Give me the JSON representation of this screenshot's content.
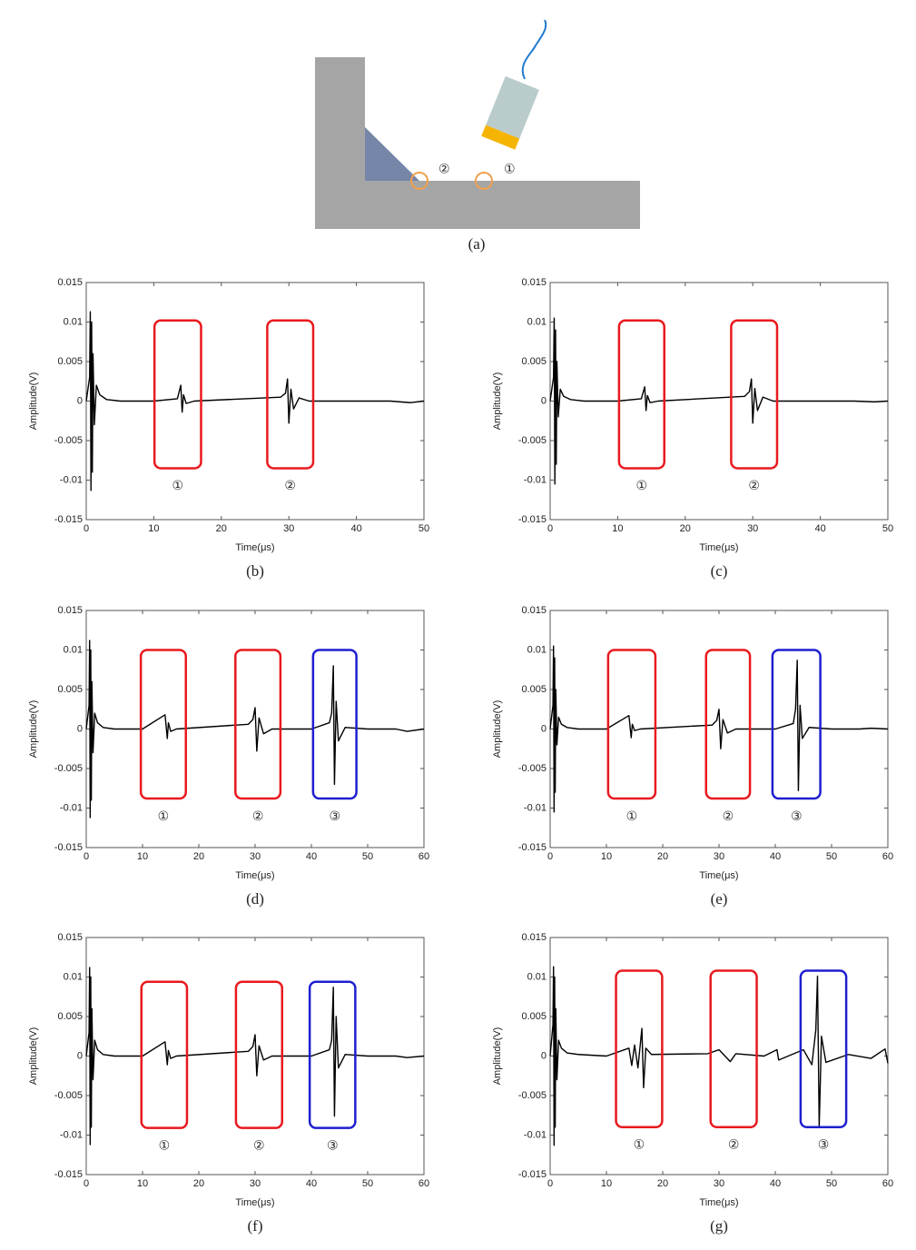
{
  "diagram": {
    "labels": [
      "②",
      "①"
    ],
    "caption": "(a)"
  },
  "chart_data": [
    {
      "type": "line",
      "caption": "(b)",
      "xlabel": "Time(μs)",
      "ylabel": "Amplitude(V)",
      "color": "#000000",
      "xlim": [
        0,
        50
      ],
      "xticks": [
        0,
        10,
        20,
        30,
        40,
        50
      ],
      "ylim": [
        -0.015,
        0.015
      ],
      "yticks": [
        -0.015,
        -0.01,
        -0.005,
        0,
        0.005,
        0.01,
        0.015
      ],
      "x": [
        0,
        0.5,
        0.6,
        0.7,
        0.8,
        0.9,
        1.0,
        1.2,
        1.5,
        2,
        3,
        5,
        10,
        13.5,
        14.0,
        14.2,
        14.4,
        14.8,
        16,
        28.8,
        29.5,
        29.8,
        30.0,
        30.3,
        30.7,
        31.5,
        33,
        40,
        45,
        48,
        50
      ],
      "values": [
        0,
        0.003,
        0.0113,
        -0.0113,
        0.01,
        -0.009,
        0.006,
        -0.003,
        0.002,
        0.0008,
        0.0002,
        0,
        0,
        0.0003,
        0.002,
        -0.0014,
        0.0008,
        -0.0003,
        0,
        0.0005,
        0.001,
        0.0028,
        -0.0028,
        0.0015,
        -0.001,
        0.0004,
        0,
        0,
        0,
        -0.0002,
        0
      ],
      "annotations": [
        {
          "text": "①",
          "color": "#e8191f",
          "xrange": [
            10.1,
            17
          ],
          "yrange": [
            0.0102,
            -0.0085
          ]
        },
        {
          "text": "②",
          "color": "#e8191f",
          "xrange": [
            26.8,
            33.6
          ],
          "yrange": [
            0.0102,
            -0.0085
          ]
        }
      ]
    },
    {
      "type": "line",
      "caption": "(c)",
      "xlabel": "Time(μs)",
      "ylabel": "Amplitude(V)",
      "color": "#000000",
      "xlim": [
        0,
        50
      ],
      "xticks": [
        0,
        10,
        20,
        30,
        40,
        50
      ],
      "ylim": [
        -0.015,
        0.015
      ],
      "yticks": [
        -0.015,
        -0.01,
        -0.005,
        0,
        0.005,
        0.01,
        0.015
      ],
      "x": [
        0,
        0.5,
        0.6,
        0.7,
        0.8,
        0.9,
        1.0,
        1.2,
        1.5,
        2,
        3,
        5,
        10,
        13.5,
        14.0,
        14.2,
        14.4,
        14.8,
        16,
        28.8,
        29.5,
        29.8,
        30.0,
        30.3,
        30.7,
        31.5,
        33,
        40,
        45,
        48,
        50
      ],
      "values": [
        0,
        0.003,
        0.0105,
        -0.0105,
        0.009,
        -0.008,
        0.005,
        -0.002,
        0.0015,
        0.0006,
        0.0002,
        0,
        0,
        0.0003,
        0.0018,
        -0.0012,
        0.0007,
        -0.0002,
        0,
        0.0006,
        0.0012,
        0.0028,
        -0.0028,
        0.0016,
        -0.0012,
        0.0005,
        0,
        0,
        0,
        -0.0001,
        0
      ],
      "annotations": [
        {
          "text": "①",
          "color": "#e8191f",
          "xrange": [
            10.2,
            16.9
          ],
          "yrange": [
            0.0102,
            -0.0085
          ]
        },
        {
          "text": "②",
          "color": "#e8191f",
          "xrange": [
            26.8,
            33.6
          ],
          "yrange": [
            0.0102,
            -0.0085
          ]
        }
      ]
    },
    {
      "type": "line",
      "caption": "(d)",
      "xlabel": "Time(μs)",
      "ylabel": "Amplitude(V)",
      "color": "#000000",
      "xlim": [
        0,
        60
      ],
      "xticks": [
        0,
        10,
        20,
        30,
        40,
        50,
        60
      ],
      "ylim": [
        -0.015,
        0.015
      ],
      "yticks": [
        -0.015,
        -0.01,
        -0.005,
        0,
        0.005,
        0.01,
        0.015
      ],
      "x": [
        0,
        0.5,
        0.6,
        0.7,
        0.8,
        0.9,
        1.0,
        1.2,
        1.5,
        2,
        3,
        5,
        10,
        14.0,
        14.4,
        14.6,
        15,
        16,
        28.8,
        29.6,
        30.0,
        30.3,
        30.7,
        31.5,
        33,
        40,
        43.2,
        43.6,
        43.9,
        44.1,
        44.4,
        44.8,
        46,
        50,
        55,
        57,
        60
      ],
      "values": [
        0,
        0.003,
        0.0112,
        -0.0112,
        0.01,
        -0.009,
        0.006,
        -0.003,
        0.002,
        0.0008,
        0.0002,
        0,
        0,
        0.0018,
        -0.0012,
        0.0008,
        -0.0003,
        0,
        0.0006,
        0.0012,
        0.0027,
        -0.0028,
        0.0014,
        -0.0006,
        0,
        0,
        0.0008,
        0.002,
        0.008,
        -0.007,
        0.0035,
        -0.0015,
        0.0002,
        0,
        0,
        -0.0003,
        0
      ],
      "annotations": [
        {
          "text": "①",
          "color": "#e8191f",
          "xrange": [
            9.7,
            17.7
          ],
          "yrange": [
            0.01,
            -0.0088
          ]
        },
        {
          "text": "②",
          "color": "#e8191f",
          "xrange": [
            26.5,
            34.5
          ],
          "yrange": [
            0.01,
            -0.0088
          ]
        },
        {
          "text": "③",
          "color": "#1f1fd0",
          "xrange": [
            40.3,
            48
          ],
          "yrange": [
            0.01,
            -0.0088
          ]
        }
      ]
    },
    {
      "type": "line",
      "caption": "(e)",
      "xlabel": "Time(μs)",
      "ylabel": "Amplitude(V)",
      "color": "#000000",
      "xlim": [
        0,
        60
      ],
      "xticks": [
        0,
        10,
        20,
        30,
        40,
        50,
        60
      ],
      "ylim": [
        -0.015,
        0.015
      ],
      "yticks": [
        -0.015,
        -0.01,
        -0.005,
        0,
        0.005,
        0.01,
        0.015
      ],
      "x": [
        0,
        0.5,
        0.6,
        0.7,
        0.8,
        0.9,
        1.0,
        1.2,
        1.5,
        2,
        3,
        5,
        10,
        14.0,
        14.4,
        14.6,
        15,
        16,
        28.8,
        29.6,
        30.0,
        30.3,
        30.7,
        31.5,
        33,
        40,
        43.2,
        43.6,
        43.9,
        44.1,
        44.4,
        44.8,
        46,
        50,
        55,
        57,
        60
      ],
      "values": [
        0,
        0.003,
        0.0105,
        -0.0105,
        0.009,
        -0.008,
        0.005,
        -0.002,
        0.0015,
        0.0006,
        0.0002,
        0,
        0,
        0.0017,
        -0.0011,
        0.0006,
        -0.0002,
        0,
        0.0005,
        0.0011,
        0.0025,
        -0.0025,
        0.0012,
        -0.0005,
        0,
        0,
        0.0007,
        0.0025,
        0.0087,
        -0.0078,
        0.003,
        -0.0012,
        0.0002,
        0,
        0,
        0.0001,
        0
      ],
      "annotations": [
        {
          "text": "①",
          "color": "#e8191f",
          "xrange": [
            10.3,
            18.7
          ],
          "yrange": [
            0.01,
            -0.0088
          ]
        },
        {
          "text": "②",
          "color": "#e8191f",
          "xrange": [
            27.7,
            35.5
          ],
          "yrange": [
            0.01,
            -0.0088
          ]
        },
        {
          "text": "③",
          "color": "#1f1fd0",
          "xrange": [
            39.5,
            48
          ],
          "yrange": [
            0.01,
            -0.0088
          ]
        }
      ]
    },
    {
      "type": "line",
      "caption": "(f)",
      "xlabel": "Time(μs)",
      "ylabel": "Amplitude(V)",
      "color": "#000000",
      "xlim": [
        0,
        60
      ],
      "xticks": [
        0,
        10,
        20,
        30,
        40,
        50,
        60
      ],
      "ylim": [
        -0.015,
        0.015
      ],
      "yticks": [
        -0.015,
        -0.01,
        -0.005,
        0,
        0.005,
        0.01,
        0.015
      ],
      "x": [
        0,
        0.5,
        0.6,
        0.7,
        0.8,
        0.9,
        1.0,
        1.2,
        1.5,
        2,
        3,
        5,
        10,
        14.0,
        14.4,
        14.6,
        15,
        16,
        28.8,
        29.6,
        30.0,
        30.3,
        30.7,
        31.5,
        33,
        40,
        43.2,
        43.6,
        43.9,
        44.1,
        44.4,
        44.8,
        46,
        50,
        55,
        57,
        60
      ],
      "values": [
        0,
        0.003,
        0.0112,
        -0.0112,
        0.01,
        -0.009,
        0.006,
        -0.003,
        0.002,
        0.0008,
        0.0002,
        0,
        0,
        0.0018,
        -0.0011,
        0.0007,
        -0.0003,
        0,
        0.0006,
        0.0012,
        0.0027,
        -0.0025,
        0.0013,
        -0.0005,
        0,
        0,
        0.0008,
        0.002,
        0.0087,
        -0.0076,
        0.005,
        -0.0015,
        0.0002,
        0,
        0,
        -0.0002,
        0
      ],
      "annotations": [
        {
          "text": "①",
          "color": "#e8191f",
          "xrange": [
            9.8,
            17.9
          ],
          "yrange": [
            0.0094,
            -0.0091
          ]
        },
        {
          "text": "②",
          "color": "#e8191f",
          "xrange": [
            26.6,
            34.8
          ],
          "yrange": [
            0.0094,
            -0.0091
          ]
        },
        {
          "text": "③",
          "color": "#1f1fd0",
          "xrange": [
            39.7,
            47.8
          ],
          "yrange": [
            0.0094,
            -0.0091
          ]
        }
      ]
    },
    {
      "type": "line",
      "caption": "(g)",
      "xlabel": "Time(μs)",
      "ylabel": "Amplitude(V)",
      "color": "#000000",
      "xlim": [
        0,
        60
      ],
      "xticks": [
        0,
        10,
        20,
        30,
        40,
        50,
        60
      ],
      "ylim": [
        -0.015,
        0.015
      ],
      "yticks": [
        -0.015,
        -0.01,
        -0.005,
        0,
        0.005,
        0.01,
        0.015
      ],
      "x": [
        0,
        0.5,
        0.6,
        0.7,
        0.8,
        0.9,
        1.0,
        1.2,
        1.5,
        2,
        3,
        5,
        10,
        14.0,
        14.5,
        15.0,
        15.6,
        16.3,
        16.6,
        17,
        18,
        28,
        30,
        32,
        33,
        38,
        40.3,
        40.6,
        45,
        46.5,
        47.2,
        47.5,
        47.8,
        48.2,
        49,
        53,
        57,
        59.5,
        60
      ],
      "values": [
        0,
        0.004,
        0.0113,
        -0.0113,
        0.01,
        -0.009,
        0.006,
        -0.003,
        0.002,
        0.001,
        0.0004,
        0.0002,
        0,
        0.001,
        -0.0012,
        0.0014,
        -0.0015,
        0.0035,
        -0.004,
        0.001,
        0.0002,
        0.0003,
        0.0008,
        -0.0007,
        0.0003,
        0,
        0.0008,
        -0.0005,
        0.0008,
        -0.0011,
        0.0033,
        0.0101,
        -0.009,
        0.0025,
        -0.0008,
        0.0002,
        -0.0003,
        0.0009,
        -0.0009
      ],
      "annotations": [
        {
          "text": "①",
          "color": "#e8191f",
          "xrange": [
            11.7,
            19.9
          ],
          "yrange": [
            0.0108,
            -0.009
          ]
        },
        {
          "text": "②",
          "color": "#e8191f",
          "xrange": [
            28.5,
            36.7
          ],
          "yrange": [
            0.0108,
            -0.009
          ]
        },
        {
          "text": "③",
          "color": "#1f1fd0",
          "xrange": [
            44.5,
            52.6
          ],
          "yrange": [
            0.0108,
            -0.009
          ]
        }
      ]
    }
  ]
}
